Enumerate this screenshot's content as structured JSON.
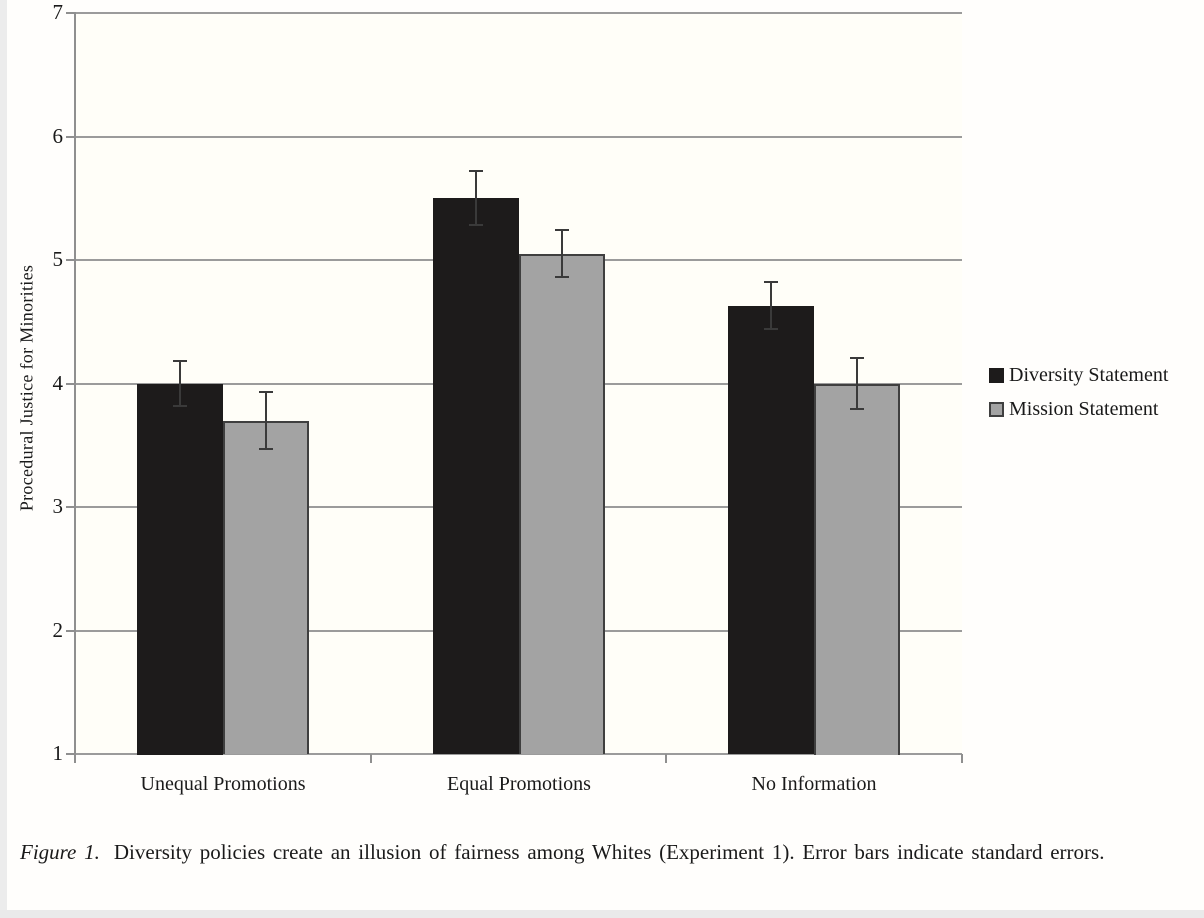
{
  "chart_data": {
    "type": "bar",
    "title": "",
    "xlabel": "",
    "ylabel": "Procedural Justice for Minorities",
    "categories": [
      "Unequal Promotions",
      "Equal Promotions",
      "No Information"
    ],
    "series": [
      {
        "name": "Diversity Statement",
        "color": "#1d1b1b",
        "border_color": "#1d1b1b",
        "values": [
          4.0,
          5.5,
          4.63
        ],
        "errors": [
          0.18,
          0.22,
          0.19
        ]
      },
      {
        "name": "Mission Statement",
        "color": "#a3a3a3",
        "border_color": "#3f3f3f",
        "values": [
          3.7,
          5.05,
          4.0
        ],
        "errors": [
          0.23,
          0.19,
          0.21
        ]
      }
    ],
    "ylim": [
      1,
      7
    ],
    "yticks": [
      1,
      2,
      3,
      4,
      5,
      6,
      7
    ],
    "grid": true,
    "legend_position": "right",
    "grid_color": "#9b9b9b",
    "axis_color": "#8f8f8f",
    "error_color": "#3a3a3a",
    "plot_bg": "#fffef8"
  },
  "caption": {
    "label": "Figure 1.",
    "text": "Diversity policies create an illusion of fairness among Whites (Experiment 1). Error bars indicate standard errors."
  }
}
